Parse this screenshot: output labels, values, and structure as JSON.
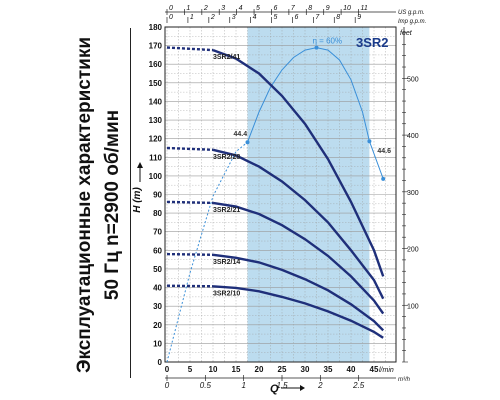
{
  "caption": {
    "line1": "Эксплуатационные характеристики",
    "line2": "50 Гц  n=2900 об/мин"
  },
  "chart_data": {
    "type": "line",
    "title": "3SR2",
    "efficiency_label": "η = 60%",
    "xlabel": "Q",
    "ylabel": "H (m)",
    "y2label": "feet",
    "colors": {
      "curve": "#1f2f7a",
      "efficiency": "#3a8fd8",
      "band": "#bcdcef",
      "grid": "#9a9a9a"
    },
    "axes": {
      "x_lpm": {
        "label": "l/min",
        "range": [
          0,
          48
        ],
        "ticks": [
          0,
          5,
          10,
          15,
          20,
          25,
          30,
          35,
          40,
          45
        ]
      },
      "x_m3h": {
        "label": "m³/h",
        "ticks": [
          "0",
          "0.5",
          "1",
          "1.5",
          "2",
          "2.5"
        ],
        "values": [
          0,
          0.5,
          1,
          1.5,
          2,
          2.5
        ]
      },
      "x_usgpm": {
        "label": "US g.p.m.",
        "ticks": [
          "0",
          "1",
          "2",
          "3",
          "4",
          "5",
          "6",
          "7",
          "8",
          "9",
          "10",
          "11"
        ],
        "values": [
          0,
          1,
          2,
          3,
          4,
          5,
          6,
          7,
          8,
          9,
          10,
          11
        ]
      },
      "x_impgpm": {
        "label": "Imp g.p.m.",
        "ticks": [
          "0",
          "1",
          "2",
          "3",
          "4",
          "5",
          "6",
          "7",
          "8",
          "9"
        ],
        "values": [
          0,
          1,
          2,
          3,
          4,
          5,
          6,
          7,
          8,
          9
        ]
      },
      "y_m": {
        "range": [
          0,
          180
        ],
        "ticks": [
          0,
          10,
          20,
          30,
          40,
          50,
          60,
          70,
          80,
          90,
          100,
          110,
          120,
          130,
          140,
          150,
          160,
          170,
          180
        ]
      },
      "y_feet": {
        "values": [
          100,
          200,
          300,
          400,
          500
        ],
        "ticks": [
          "100",
          "200",
          "300",
          "400",
          "500"
        ]
      }
    },
    "recommended_range": [
      17.5,
      44
    ],
    "series": [
      {
        "name": "3SR2/41",
        "dashed_x": [
          0,
          10
        ],
        "dashed_y": [
          169,
          167.6
        ],
        "x": [
          10,
          15,
          20,
          25,
          30,
          35,
          40,
          45,
          47
        ],
        "y": [
          167.6,
          163,
          155,
          143,
          128,
          109,
          86,
          60,
          46
        ]
      },
      {
        "name": "3SR2/28",
        "dashed_x": [
          0,
          10
        ],
        "dashed_y": [
          115,
          114
        ],
        "x": [
          10,
          15,
          20,
          25,
          30,
          35,
          40,
          45,
          47
        ],
        "y": [
          114,
          111,
          105,
          97,
          87,
          75,
          60,
          44,
          34
        ]
      },
      {
        "name": "3SR2/21",
        "dashed_x": [
          0,
          10
        ],
        "dashed_y": [
          86,
          85.5
        ],
        "x": [
          10,
          15,
          20,
          25,
          30,
          35,
          40,
          45,
          47
        ],
        "y": [
          85.5,
          83.5,
          79.5,
          73.5,
          66,
          57,
          46,
          33,
          26
        ]
      },
      {
        "name": "3SR2/14",
        "dashed_x": [
          0,
          10
        ],
        "dashed_y": [
          58,
          57.6
        ],
        "x": [
          10,
          15,
          20,
          25,
          30,
          35,
          40,
          45,
          47
        ],
        "y": [
          57.6,
          56,
          53.5,
          49.5,
          44.5,
          38.5,
          31,
          22,
          17
        ]
      },
      {
        "name": "3SR2/10",
        "dashed_x": [
          0,
          10
        ],
        "dashed_y": [
          41,
          40.7
        ],
        "x": [
          10,
          15,
          20,
          25,
          30,
          35,
          40,
          45,
          47
        ],
        "y": [
          40.7,
          39.8,
          38,
          35,
          31.5,
          27.2,
          22.2,
          16.2,
          13
        ]
      }
    ],
    "efficiency": {
      "dashed_x": [
        0,
        5,
        10,
        15,
        17.5
      ],
      "dashed_y": [
        0,
        18,
        33.5,
        42.5,
        44.4
      ],
      "x": [
        17.5,
        20,
        22.5,
        25,
        27.5,
        30,
        32.5,
        35,
        37.5,
        40,
        42.5,
        44,
        47
      ],
      "y": [
        44.4,
        50.5,
        55.5,
        59,
        61.5,
        63,
        63.5,
        63,
        61,
        57,
        50.5,
        44.6,
        37
      ],
      "peak": {
        "x": 32.5,
        "y": 63.5
      },
      "markers": [
        {
          "x": 17.5,
          "y": 44.4,
          "label": "44.4"
        },
        {
          "x": 44,
          "y": 44.6,
          "label": "44.6"
        }
      ],
      "end": {
        "x": 47,
        "y": 37
      },
      "y_range": [
        0,
        67.6
      ]
    }
  }
}
